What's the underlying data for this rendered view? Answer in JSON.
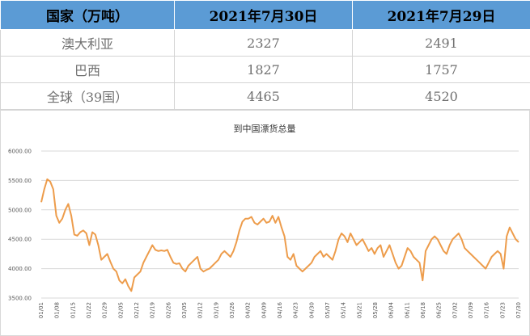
{
  "table": {
    "headers": [
      "国家（万吨）",
      "2021年7月30日",
      "2021年7月29日"
    ],
    "rows": [
      [
        "澳大利亚",
        "2327",
        "2491"
      ],
      [
        "巴西",
        "1827",
        "1757"
      ],
      [
        "全球（39国）",
        "4465",
        "4520"
      ]
    ]
  },
  "chart_data": {
    "type": "line",
    "title": "到中国漂货总量",
    "ylim": [
      3500,
      6000
    ],
    "yticks": [
      "3500.00",
      "4000.00",
      "4500.00",
      "5000.00",
      "5500.00",
      "6000.00"
    ],
    "grid": "horizontal",
    "x_tick_labels": [
      "01/01",
      "01/08",
      "01/15",
      "01/22",
      "01/29",
      "02/05",
      "02/12",
      "02/19",
      "02/26",
      "03/05",
      "03/12",
      "03/19",
      "03/26",
      "04/02",
      "04/09",
      "04/16",
      "04/23",
      "04/30",
      "05/07",
      "05/14",
      "05/21",
      "05/28",
      "06/04",
      "06/11",
      "06/18",
      "06/25",
      "07/02",
      "07/09",
      "07/16",
      "07/23",
      "07/30"
    ],
    "series": [
      {
        "color": "#ed9c4b",
        "values": [
          5130,
          5350,
          5520,
          5480,
          5350,
          4900,
          4780,
          4850,
          5000,
          5100,
          4900,
          4580,
          4560,
          4620,
          4650,
          4600,
          4400,
          4620,
          4580,
          4400,
          4150,
          4200,
          4250,
          4120,
          4000,
          3950,
          3800,
          3750,
          3820,
          3700,
          3620,
          3850,
          3900,
          3950,
          4100,
          4200,
          4300,
          4400,
          4320,
          4300,
          4310,
          4300,
          4320,
          4200,
          4100,
          4080,
          4090,
          4000,
          3950,
          4050,
          4100,
          4150,
          4200,
          4000,
          3950,
          3980,
          4000,
          4050,
          4100,
          4150,
          4250,
          4300,
          4250,
          4200,
          4300,
          4450,
          4650,
          4800,
          4850,
          4850,
          4880,
          4780,
          4750,
          4800,
          4850,
          4780,
          4800,
          4900,
          4780,
          4880,
          4700,
          4550,
          4200,
          4150,
          4250,
          4050,
          4000,
          3950,
          4000,
          4050,
          4100,
          4200,
          4250,
          4300,
          4200,
          4250,
          4200,
          4150,
          4300,
          4500,
          4600,
          4550,
          4450,
          4600,
          4500,
          4400,
          4450,
          4500,
          4400,
          4300,
          4350,
          4250,
          4350,
          4400,
          4200,
          4300,
          4400,
          4250,
          4100,
          4000,
          4050,
          4200,
          4350,
          4300,
          4200,
          4150,
          4100,
          3800,
          4300,
          4400,
          4500,
          4550,
          4500,
          4400,
          4300,
          4250,
          4400,
          4500,
          4550,
          4600,
          4500,
          4350,
          4300,
          4250,
          4200,
          4150,
          4100,
          4050,
          4000,
          4100,
          4200,
          4250,
          4300,
          4250,
          4000,
          4550,
          4700,
          4600,
          4500,
          4450
        ]
      }
    ]
  }
}
